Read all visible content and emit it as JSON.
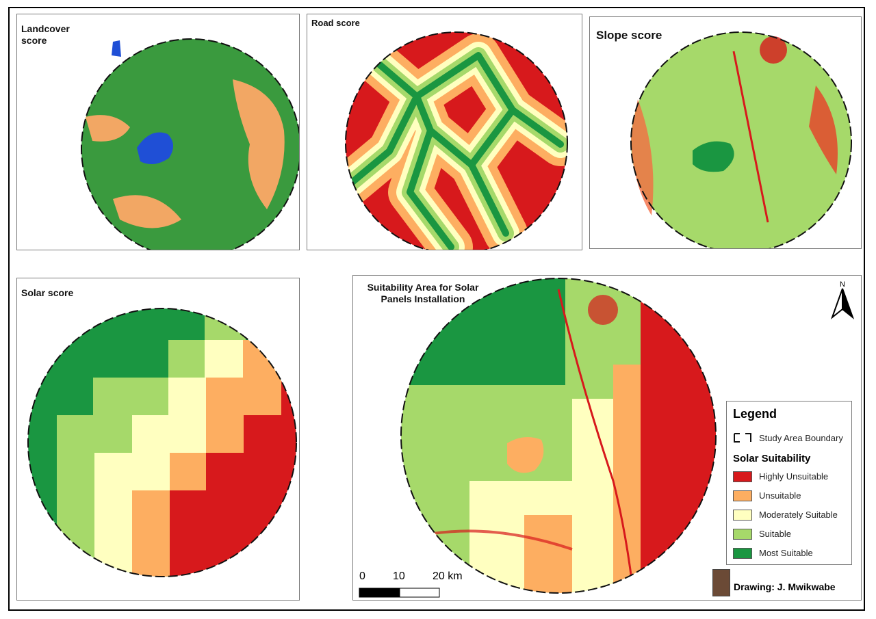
{
  "panels": {
    "landcover": {
      "title": "Landcover\nscore"
    },
    "road": {
      "title": "Road score"
    },
    "slope": {
      "title": "Slope score"
    },
    "solar": {
      "title": "Solar score"
    },
    "suitability": {
      "title": "Suitability Area for Solar\nPanels Installation"
    }
  },
  "legend": {
    "title": "Legend",
    "boundary_label": "Study Area Boundary",
    "section_title": "Solar Suitability",
    "classes": [
      {
        "label": "Highly Unsuitable",
        "color": "#d7191c"
      },
      {
        "label": "Unsuitable",
        "color": "#fdae61"
      },
      {
        "label": "Moderately Suitable",
        "color": "#ffffc0"
      },
      {
        "label": "Suitable",
        "color": "#a6d96a"
      },
      {
        "label": "Most Suitable",
        "color": "#1a9641"
      }
    ]
  },
  "landcover_colors": {
    "vegetation": "#3a9a3e",
    "bare": "#f2a764",
    "water": "#1f4fd6"
  },
  "scale": {
    "labels": [
      "0",
      "10",
      "20 km"
    ]
  },
  "north": {
    "label": "N"
  },
  "credit": {
    "text": "Drawing: J. Mwikwabe"
  }
}
